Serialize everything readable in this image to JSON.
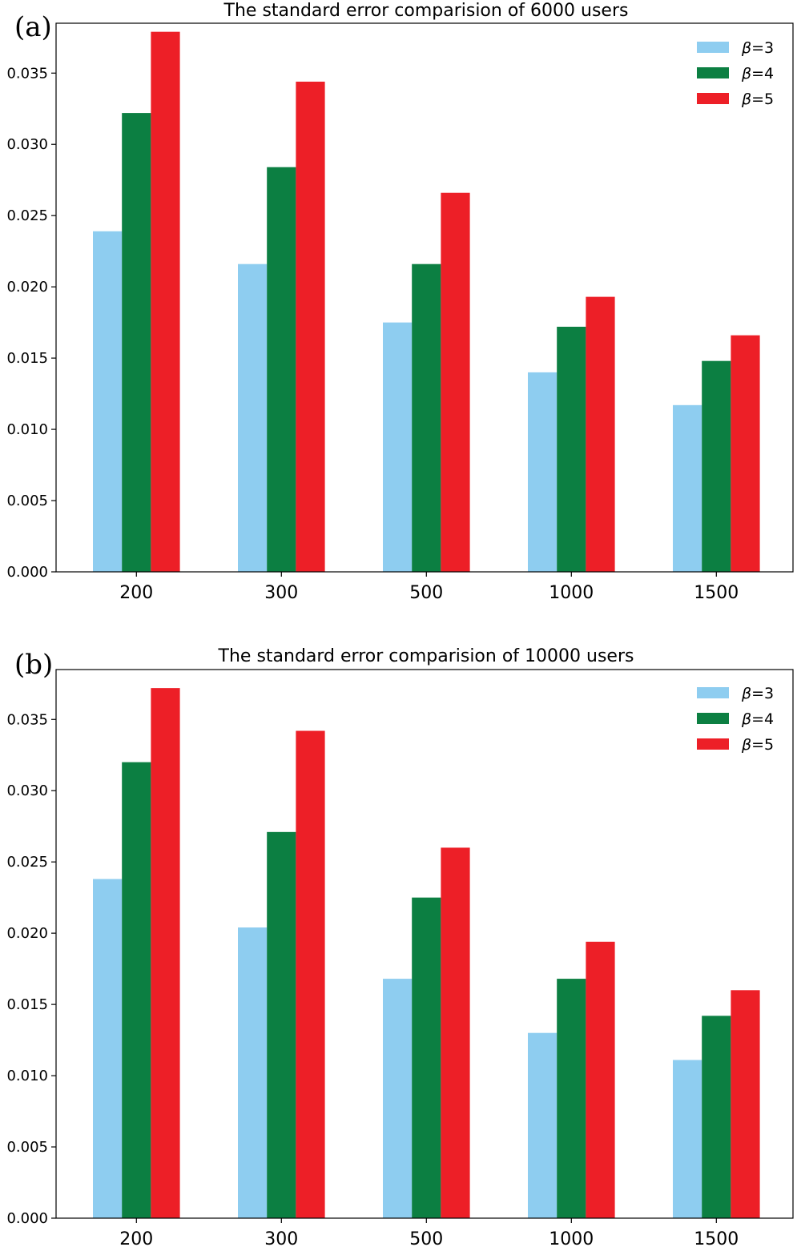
{
  "chart_data": [
    {
      "type": "bar",
      "panel_label": "(a)",
      "title": "The standard error comparision of 6000 users",
      "xlabel": "",
      "ylabel": "",
      "categories": [
        "200",
        "300",
        "500",
        "1000",
        "1500"
      ],
      "ylim": [
        0,
        0.0385
      ],
      "yticks": [
        "0.000",
        "0.005",
        "0.010",
        "0.015",
        "0.020",
        "0.025",
        "0.030",
        "0.035"
      ],
      "ytick_values": [
        0,
        0.005,
        0.01,
        0.015,
        0.02,
        0.025,
        0.03,
        0.035
      ],
      "legend_position": "top-right",
      "series": [
        {
          "name": "β=3",
          "color": "#8ecdf0",
          "values": [
            0.0239,
            0.0216,
            0.0175,
            0.014,
            0.0117
          ]
        },
        {
          "name": "β=4",
          "color": "#0c7f42",
          "values": [
            0.0322,
            0.0284,
            0.0216,
            0.0172,
            0.0148
          ]
        },
        {
          "name": "β=5",
          "color": "#ed1f27",
          "values": [
            0.0379,
            0.0344,
            0.0266,
            0.0193,
            0.0166
          ]
        }
      ]
    },
    {
      "type": "bar",
      "panel_label": "(b)",
      "title": "The standard error comparision of 10000 users",
      "xlabel": "",
      "ylabel": "",
      "categories": [
        "200",
        "300",
        "500",
        "1000",
        "1500"
      ],
      "ylim": [
        0,
        0.0385
      ],
      "yticks": [
        "0.000",
        "0.005",
        "0.010",
        "0.015",
        "0.020",
        "0.025",
        "0.030",
        "0.035"
      ],
      "ytick_values": [
        0,
        0.005,
        0.01,
        0.015,
        0.02,
        0.025,
        0.03,
        0.035
      ],
      "legend_position": "top-right",
      "series": [
        {
          "name": "β=3",
          "color": "#8ecdf0",
          "values": [
            0.0238,
            0.0204,
            0.0168,
            0.013,
            0.0111
          ]
        },
        {
          "name": "β=4",
          "color": "#0c7f42",
          "values": [
            0.032,
            0.0271,
            0.0225,
            0.0168,
            0.0142
          ]
        },
        {
          "name": "β=5",
          "color": "#ed1f27",
          "values": [
            0.0372,
            0.0342,
            0.026,
            0.0194,
            0.016
          ]
        }
      ]
    }
  ]
}
